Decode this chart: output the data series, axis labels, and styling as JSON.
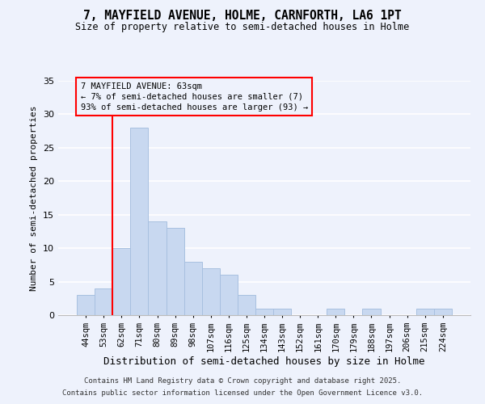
{
  "title": "7, MAYFIELD AVENUE, HOLME, CARNFORTH, LA6 1PT",
  "subtitle": "Size of property relative to semi-detached houses in Holme",
  "xlabel": "Distribution of semi-detached houses by size in Holme",
  "ylabel": "Number of semi-detached properties",
  "bar_color": "#c8d8f0",
  "bar_edge_color": "#a8c0e0",
  "bin_labels": [
    "44sqm",
    "53sqm",
    "62sqm",
    "71sqm",
    "80sqm",
    "89sqm",
    "98sqm",
    "107sqm",
    "116sqm",
    "125sqm",
    "134sqm",
    "143sqm",
    "152sqm",
    "161sqm",
    "170sqm",
    "179sqm",
    "188sqm",
    "197sqm",
    "206sqm",
    "215sqm",
    "224sqm"
  ],
  "bar_values": [
    3,
    4,
    10,
    28,
    14,
    13,
    8,
    7,
    6,
    3,
    1,
    1,
    0,
    0,
    1,
    0,
    1,
    0,
    0,
    1,
    1
  ],
  "red_line_index": 2,
  "ylim": [
    0,
    35
  ],
  "yticks": [
    0,
    5,
    10,
    15,
    20,
    25,
    30,
    35
  ],
  "annotation_title": "7 MAYFIELD AVENUE: 63sqm",
  "annotation_line1": "← 7% of semi-detached houses are smaller (7)",
  "annotation_line2": "93% of semi-detached houses are larger (93) →",
  "background_color": "#eef2fc",
  "grid_color": "#ffffff",
  "footnote1": "Contains HM Land Registry data © Crown copyright and database right 2025.",
  "footnote2": "Contains public sector information licensed under the Open Government Licence v3.0."
}
